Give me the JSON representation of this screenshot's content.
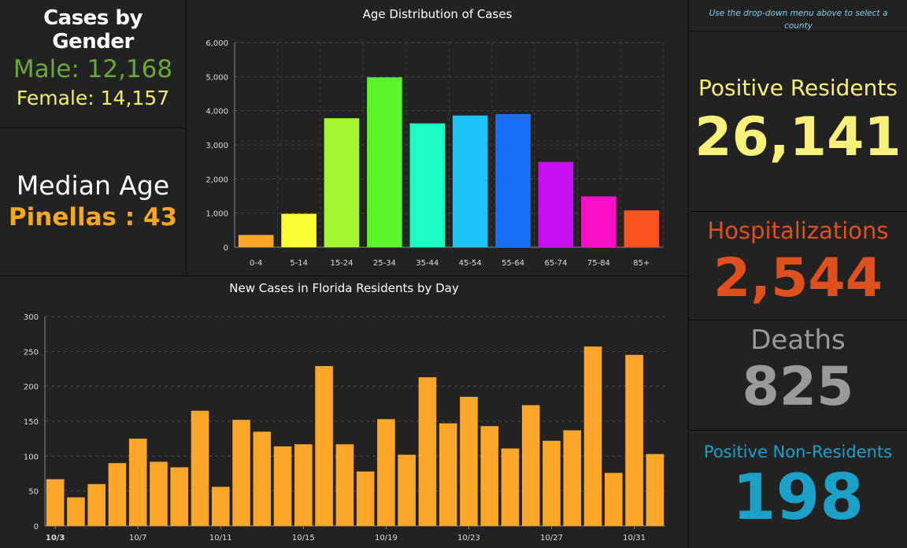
{
  "gender": {
    "title": "Cases by Gender",
    "male": "Male: 12,168",
    "female": "Female: 14,157"
  },
  "median": {
    "title": "Median Age",
    "value": "Pinellas : 43"
  },
  "hint": "Use the drop-down menu above to select a county",
  "stats": {
    "positive_label": "Positive Residents",
    "positive_value": "26,141",
    "hosp_label": "Hospitalizations",
    "hosp_value": "2,544",
    "deaths_label": "Deaths",
    "deaths_value": "825",
    "nonres_label": "Positive Non-Residents",
    "nonres_value": "198"
  },
  "colors": {
    "male": "#6aa83a",
    "female": "#f2ee66",
    "median": "#f5a623",
    "positive": "#f7f07a",
    "hosp": "#e0501f",
    "deaths": "#9a9a9a",
    "nonres": "#1ba0c8",
    "new_cases_bar": "#fca72a"
  },
  "chart_data": [
    {
      "type": "bar",
      "title": "Age Distribution of Cases",
      "categories": [
        "0-4",
        "5-14",
        "15-24",
        "25-34",
        "35-44",
        "45-54",
        "55-64",
        "65-74",
        "75-84",
        "85+"
      ],
      "values": [
        360,
        980,
        3780,
        4980,
        3630,
        3860,
        3900,
        2500,
        1490,
        1080
      ],
      "colors": [
        "#fca72a",
        "#fdfd35",
        "#a4f531",
        "#5bf429",
        "#1dfcc4",
        "#1cc4f7",
        "#1670f7",
        "#c610f1",
        "#fa0fc6",
        "#fb531e"
      ],
      "ylim": [
        0,
        6000
      ],
      "yticks": [
        "0",
        "1,000",
        "2,000",
        "3,000",
        "4,000",
        "5,000",
        "6,000"
      ],
      "grid": true
    },
    {
      "type": "bar",
      "title": "New Cases in Florida Residents by Day",
      "categories": [
        "10/3",
        "10/4",
        "10/5",
        "10/6",
        "10/7",
        "10/8",
        "10/9",
        "10/10",
        "10/11",
        "10/12",
        "10/13",
        "10/14",
        "10/15",
        "10/16",
        "10/17",
        "10/18",
        "10/19",
        "10/20",
        "10/21",
        "10/22",
        "10/23",
        "10/24",
        "10/25",
        "10/26",
        "10/27",
        "10/28",
        "10/29",
        "10/30",
        "10/31",
        "11/1"
      ],
      "values": [
        67,
        41,
        60,
        90,
        125,
        92,
        84,
        165,
        56,
        152,
        135,
        114,
        117,
        229,
        117,
        78,
        153,
        102,
        213,
        147,
        185,
        143,
        111,
        173,
        122,
        137,
        257,
        76,
        245,
        103
      ],
      "xtick_labels": [
        "10/3",
        "10/7",
        "10/11",
        "10/15",
        "10/19",
        "10/23",
        "10/27",
        "10/31"
      ],
      "ylim": [
        0,
        300
      ],
      "yticks": [
        "0",
        "50",
        "100",
        "150",
        "200",
        "250",
        "300"
      ],
      "grid": true
    }
  ]
}
